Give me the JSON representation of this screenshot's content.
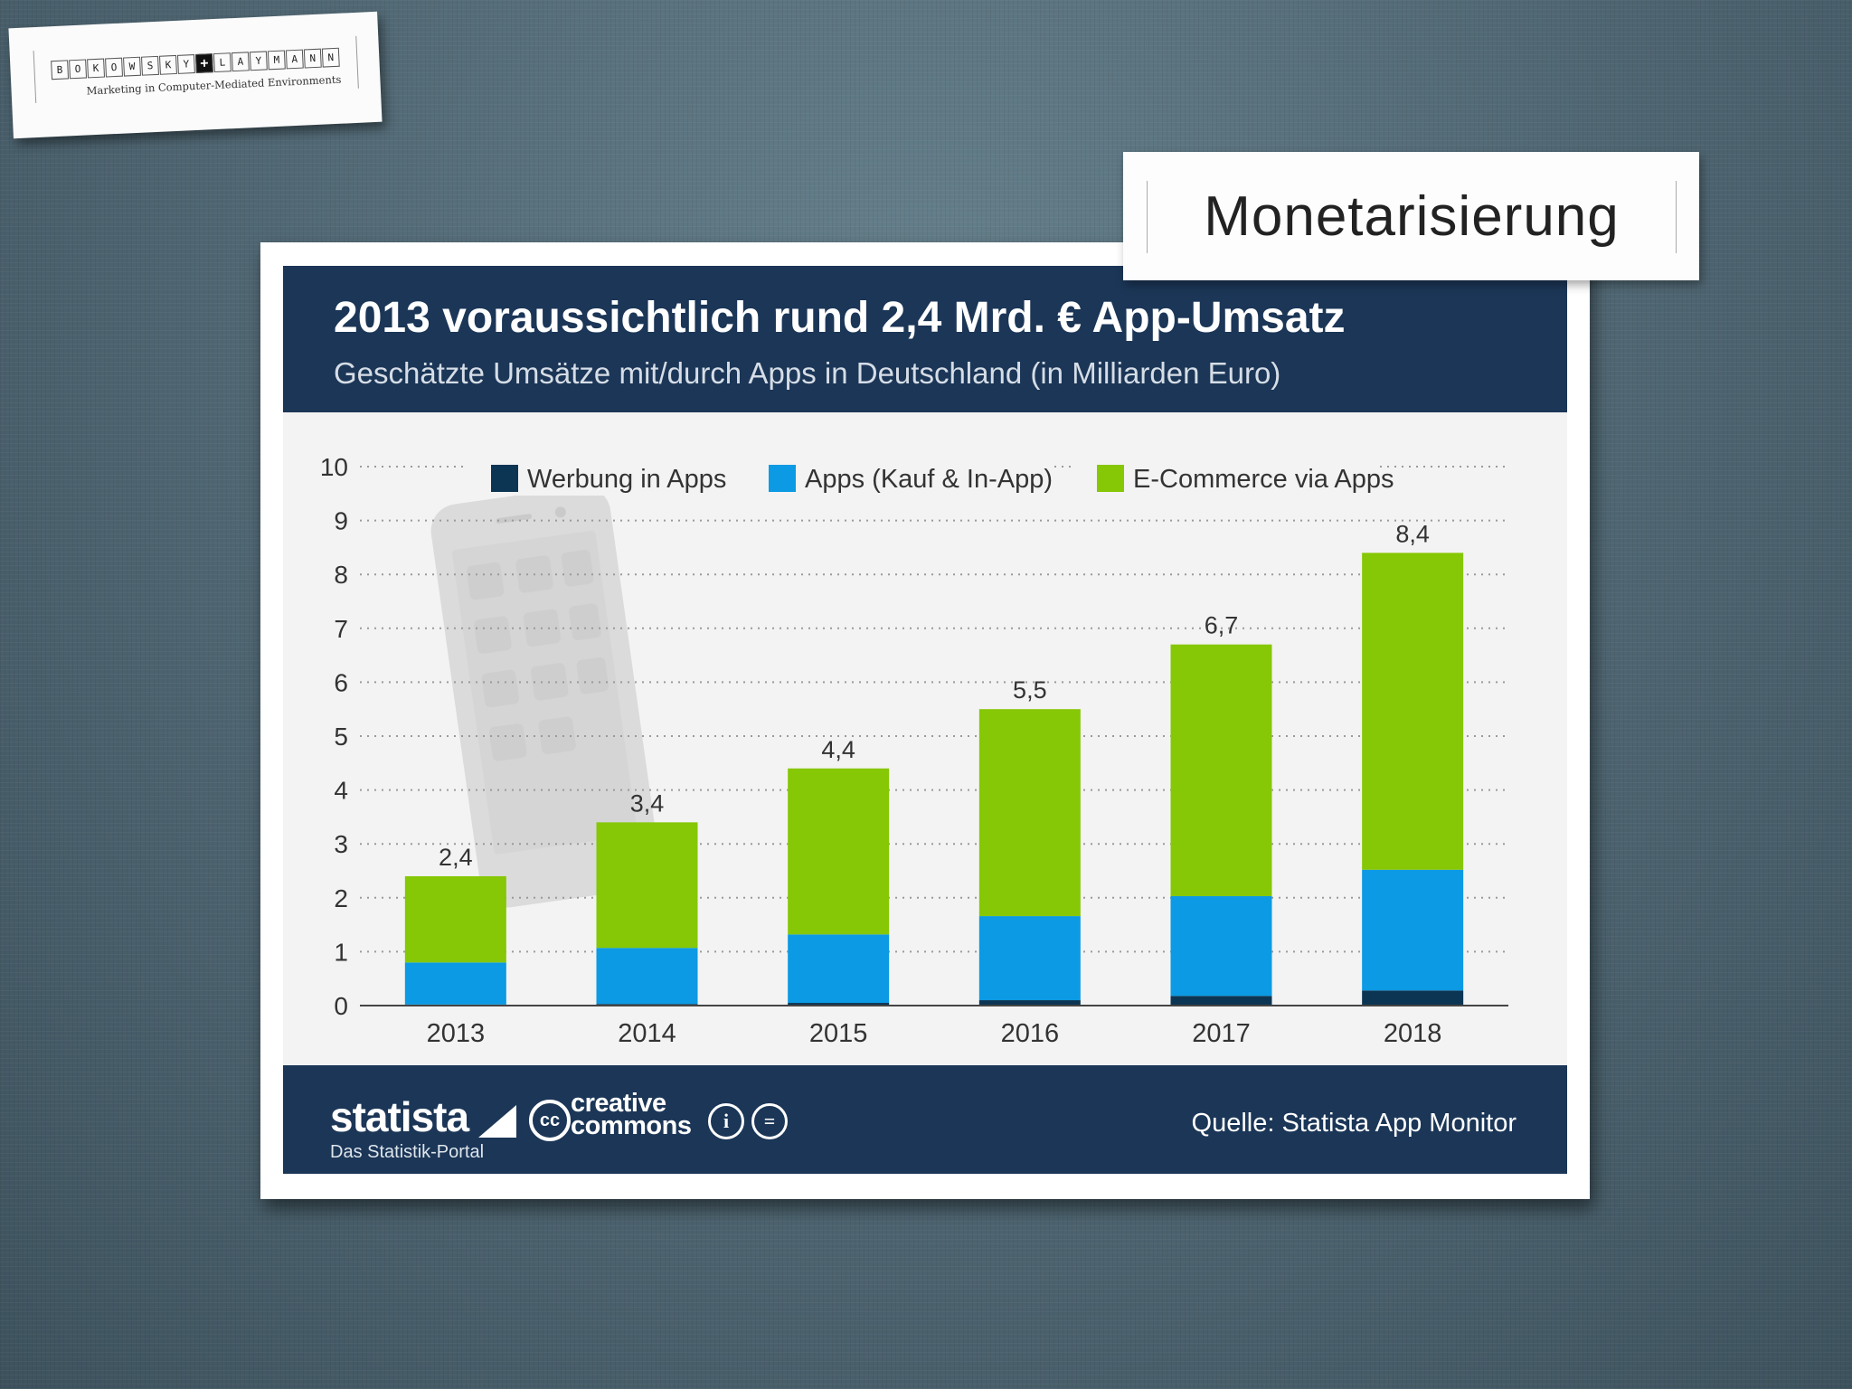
{
  "logo": {
    "letters": [
      "b",
      "o",
      "k",
      "o",
      "w",
      "s",
      "k",
      "y",
      "+",
      "l",
      "a",
      "y",
      "m",
      "a",
      "n",
      "n"
    ],
    "tagline": "Marketing in Computer-Mediated Environments"
  },
  "slide": {
    "title": "Monetarisierung"
  },
  "footer": {
    "brand": "statista",
    "brand_tagline": "Das Statistik-Portal",
    "cc_symbol": "cc",
    "cc_line1": "creative",
    "cc_line2": "commons",
    "license_by": "i",
    "license_nd": "=",
    "source": "Quelle: Statista App Monitor"
  },
  "colors": {
    "header_bg": "#1b3657",
    "werbung": "#0c3553",
    "apps": "#0b9ae3",
    "ecommerce": "#86c706"
  },
  "chart_data": {
    "type": "bar",
    "stacked": true,
    "title": "2013 voraussichtlich rund 2,4 Mrd. € App-Umsatz",
    "subtitle": "Geschätzte Umsätze mit/durch Apps in Deutschland (in Milliarden Euro)",
    "xlabel": "",
    "ylabel": "",
    "ylim": [
      0,
      10
    ],
    "yticks": [
      "0",
      "1",
      "2",
      "3",
      "4",
      "5",
      "6",
      "7",
      "8",
      "9",
      "10"
    ],
    "grid": true,
    "legend_position": "top",
    "categories": [
      "2013",
      "2014",
      "2015",
      "2016",
      "2017",
      "2018"
    ],
    "series": [
      {
        "name": "Werbung in Apps",
        "color": "#0c3553",
        "values": [
          0.02,
          0.03,
          0.05,
          0.1,
          0.18,
          0.28
        ]
      },
      {
        "name": "Apps (Kauf & In-App)",
        "color": "#0b9ae3",
        "values": [
          0.78,
          1.04,
          1.27,
          1.56,
          1.85,
          2.24
        ]
      },
      {
        "name": "E-Commerce via Apps",
        "color": "#86c706",
        "values": [
          1.6,
          2.33,
          3.08,
          3.84,
          4.67,
          5.88
        ]
      }
    ],
    "totals": [
      "2,4",
      "3,4",
      "4,4",
      "5,5",
      "6,7",
      "8,4"
    ]
  }
}
